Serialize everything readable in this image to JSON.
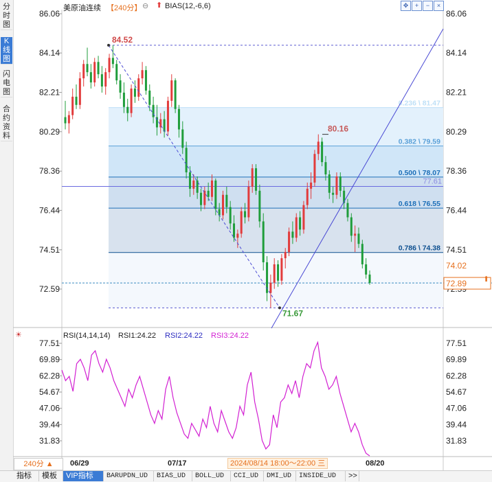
{
  "sidebar": {
    "tabs": [
      {
        "label": "分时图",
        "active": false
      },
      {
        "label": "K线图",
        "active": true
      },
      {
        "label": "闪电图",
        "active": false
      },
      {
        "label": "合约资料",
        "active": false
      }
    ]
  },
  "header": {
    "instrument": "美原油连续",
    "period_badge": "【240分】",
    "indicator": "BIAS(12,-6,6)",
    "toolbar_icons": [
      "fit-icon",
      "zoom-in-icon",
      "zoom-out-icon",
      "close-panel-icon"
    ]
  },
  "price_axis": {
    "ticks": [
      "86.06",
      "84.14",
      "82.21",
      "80.29",
      "78.36",
      "76.44",
      "74.51",
      "72.59"
    ],
    "current_price": "74.02",
    "last_price_tag": "72.89"
  },
  "annotations": {
    "high_label": "84.52",
    "low_label": "71.67",
    "swing_high_label": "80.16",
    "hline_label": "77.61"
  },
  "fibonacci": [
    {
      "label": "0.236 \\ 81.47",
      "price": 81.47,
      "color": "#bfe0f7"
    },
    {
      "label": "0.382 \\ 79.59",
      "price": 79.59,
      "color": "#5aa0d8"
    },
    {
      "label": "0.500 \\ 78.07",
      "price": 78.07,
      "color": "#1d6fb8"
    },
    {
      "label": "0.618 \\ 76.55",
      "price": 76.55,
      "color": "#1d6fb8"
    },
    {
      "label": "0.786 \\ 74.38",
      "price": 74.38,
      "color": "#0d4f8f"
    }
  ],
  "rsi": {
    "header": "RSI(14,14,14)",
    "rsi1": "RSI1:24.22",
    "rsi2": "RSI2:24.22",
    "rsi3": "RSI3:24.22",
    "ticks": [
      "77.51",
      "69.89",
      "62.28",
      "54.67",
      "47.06",
      "39.44",
      "31.83"
    ]
  },
  "time_axis": {
    "period": "240分 ▲",
    "dates": [
      "06/29",
      "07/17",
      "08/20"
    ],
    "cursor_time": "2024/08/14 18:00～22:00 三"
  },
  "bottom_tabs": [
    "指标",
    "模板",
    "VIP指标",
    "BARUPDN_UD",
    "BIAS_UD",
    "BOLL_UD",
    "CCI_UD",
    "DMI_UD",
    "INSIDE_UD",
    ">>"
  ],
  "colors": {
    "up": "#e23b3b",
    "down": "#1f9d3a",
    "rsi_line": "#d21fd2",
    "trend_line": "#4a4ad4",
    "accent": "#3a7bd5"
  },
  "chart_data": {
    "type": "candlestick",
    "ylim": [
      71.0,
      86.5
    ],
    "ohlc": [
      [
        81.0,
        81.8,
        80.4,
        80.7
      ],
      [
        80.7,
        81.3,
        80.2,
        81.1
      ],
      [
        81.1,
        82.4,
        80.9,
        82.0
      ],
      [
        82.0,
        82.6,
        81.4,
        81.6
      ],
      [
        81.6,
        83.2,
        81.4,
        82.9
      ],
      [
        82.9,
        83.8,
        82.5,
        83.6
      ],
      [
        83.6,
        84.4,
        83.0,
        83.2
      ],
      [
        83.2,
        83.6,
        82.4,
        82.7
      ],
      [
        82.7,
        83.9,
        82.5,
        83.7
      ],
      [
        83.7,
        84.0,
        82.9,
        83.1
      ],
      [
        83.1,
        83.5,
        82.2,
        82.5
      ],
      [
        82.5,
        83.4,
        82.1,
        83.2
      ],
      [
        83.2,
        84.1,
        82.9,
        83.9
      ],
      [
        83.9,
        84.52,
        83.4,
        83.6
      ],
      [
        83.6,
        83.8,
        82.6,
        82.8
      ],
      [
        82.8,
        83.1,
        81.9,
        82.2
      ],
      [
        82.2,
        82.7,
        81.2,
        81.5
      ],
      [
        81.5,
        81.9,
        80.8,
        81.2
      ],
      [
        81.2,
        82.6,
        81.0,
        82.4
      ],
      [
        82.4,
        82.8,
        81.7,
        82.0
      ],
      [
        82.0,
        83.1,
        81.8,
        82.9
      ],
      [
        82.9,
        83.7,
        82.6,
        83.3
      ],
      [
        83.3,
        83.5,
        82.1,
        82.3
      ],
      [
        82.3,
        82.6,
        81.3,
        81.6
      ],
      [
        81.6,
        82.0,
        80.7,
        81.0
      ],
      [
        81.0,
        81.6,
        80.1,
        80.5
      ],
      [
        80.5,
        81.2,
        80.2,
        80.9
      ],
      [
        80.9,
        81.3,
        80.0,
        80.3
      ],
      [
        80.3,
        82.0,
        80.1,
        81.8
      ],
      [
        81.8,
        83.1,
        81.5,
        82.8
      ],
      [
        82.8,
        82.9,
        81.2,
        81.4
      ],
      [
        81.4,
        81.6,
        80.0,
        80.4
      ],
      [
        80.4,
        80.8,
        79.2,
        79.5
      ],
      [
        79.5,
        79.8,
        78.0,
        78.3
      ],
      [
        78.3,
        78.6,
        77.1,
        77.5
      ],
      [
        77.5,
        78.2,
        77.2,
        77.9
      ],
      [
        77.9,
        78.1,
        77.0,
        77.3
      ],
      [
        77.3,
        77.5,
        76.4,
        76.7
      ],
      [
        76.7,
        77.6,
        76.5,
        77.4
      ],
      [
        77.4,
        77.8,
        76.9,
        77.1
      ],
      [
        77.1,
        78.2,
        76.9,
        77.9
      ],
      [
        77.9,
        78.0,
        76.2,
        76.5
      ],
      [
        76.5,
        76.8,
        75.9,
        76.2
      ],
      [
        76.2,
        77.4,
        76.0,
        77.2
      ],
      [
        77.2,
        77.6,
        76.3,
        76.6
      ],
      [
        76.6,
        76.9,
        75.5,
        75.8
      ],
      [
        75.8,
        76.2,
        74.9,
        75.1
      ],
      [
        75.1,
        75.5,
        74.6,
        75.3
      ],
      [
        75.3,
        76.6,
        75.1,
        76.4
      ],
      [
        76.4,
        76.8,
        75.8,
        76.1
      ],
      [
        76.1,
        77.9,
        75.9,
        77.6
      ],
      [
        77.6,
        78.7,
        77.3,
        78.5
      ],
      [
        78.5,
        78.7,
        77.2,
        77.4
      ],
      [
        77.4,
        77.7,
        75.6,
        75.9
      ],
      [
        75.9,
        76.3,
        73.5,
        73.9
      ],
      [
        73.9,
        74.2,
        72.0,
        72.4
      ],
      [
        72.4,
        73.3,
        71.67,
        72.9
      ],
      [
        72.9,
        74.1,
        72.6,
        73.8
      ],
      [
        73.8,
        74.0,
        72.7,
        73.0
      ],
      [
        73.0,
        74.3,
        72.8,
        74.1
      ],
      [
        74.1,
        74.6,
        73.6,
        74.4
      ],
      [
        74.4,
        75.6,
        74.2,
        75.4
      ],
      [
        75.4,
        75.9,
        74.8,
        75.1
      ],
      [
        75.1,
        76.3,
        74.9,
        76.1
      ],
      [
        76.1,
        76.4,
        75.2,
        75.5
      ],
      [
        75.5,
        76.9,
        75.3,
        76.7
      ],
      [
        76.7,
        77.8,
        76.5,
        77.5
      ],
      [
        77.5,
        78.3,
        77.0,
        77.8
      ],
      [
        77.8,
        79.4,
        77.6,
        79.2
      ],
      [
        79.2,
        80.16,
        78.9,
        79.8
      ],
      [
        79.8,
        80.0,
        78.6,
        78.8
      ],
      [
        78.8,
        79.1,
        77.9,
        78.2
      ],
      [
        78.2,
        78.4,
        77.0,
        77.3
      ],
      [
        77.3,
        77.6,
        76.8,
        77.2
      ],
      [
        77.2,
        78.3,
        77.0,
        78.1
      ],
      [
        78.1,
        78.3,
        77.1,
        77.4
      ],
      [
        77.4,
        77.6,
        76.5,
        76.8
      ],
      [
        76.8,
        77.0,
        75.9,
        76.1
      ],
      [
        76.1,
        76.3,
        74.9,
        75.2
      ],
      [
        75.2,
        75.7,
        74.4,
        75.3
      ],
      [
        75.3,
        75.6,
        74.6,
        74.8
      ],
      [
        74.8,
        75.0,
        73.6,
        73.8
      ],
      [
        73.8,
        74.1,
        73.1,
        73.3
      ],
      [
        73.3,
        73.5,
        72.8,
        72.89
      ]
    ],
    "rsi_values": [
      65,
      60,
      62,
      55,
      68,
      70,
      66,
      60,
      72,
      74,
      68,
      64,
      70,
      66,
      60,
      56,
      52,
      48,
      56,
      52,
      58,
      62,
      56,
      50,
      44,
      40,
      46,
      42,
      56,
      62,
      52,
      45,
      40,
      35,
      33,
      40,
      37,
      34,
      42,
      38,
      48,
      40,
      36,
      46,
      41,
      36,
      33,
      38,
      48,
      44,
      58,
      64,
      50,
      42,
      32,
      28,
      30,
      44,
      38,
      50,
      52,
      58,
      54,
      60,
      52,
      62,
      68,
      66,
      74,
      78,
      66,
      62,
      56,
      58,
      62,
      54,
      48,
      42,
      36,
      40,
      36,
      30,
      26,
      24.22
    ],
    "rsi_ylim": [
      24,
      80
    ]
  }
}
